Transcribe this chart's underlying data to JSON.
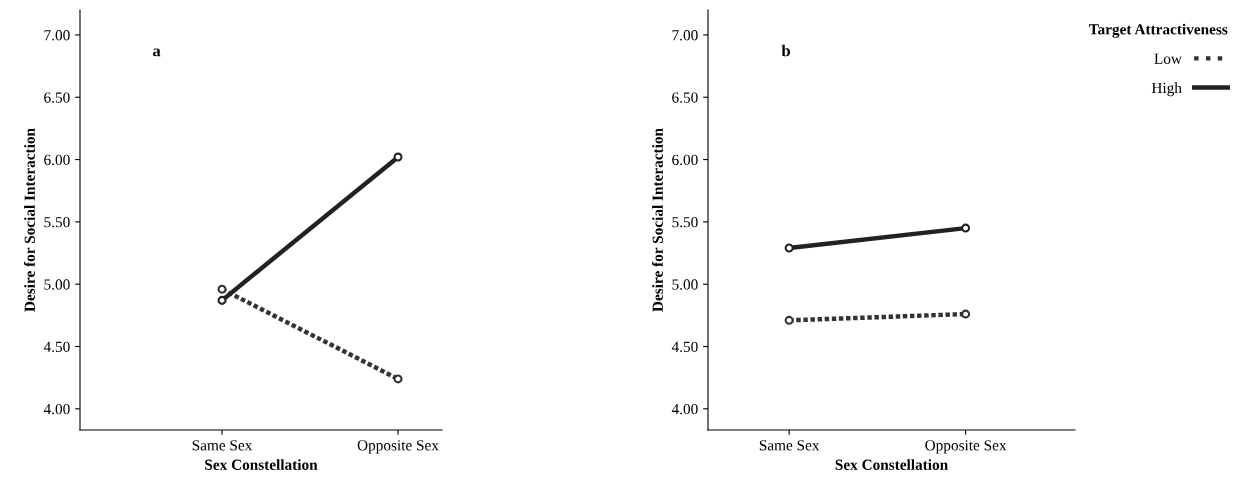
{
  "chart_data": [
    {
      "type": "line",
      "categories": [
        "Same Sex",
        "Opposite Sex"
      ],
      "xlabel": "Sex Constellation",
      "ylabel": "Desire for Social Interaction",
      "annotations": [
        "a"
      ],
      "marker": "circle",
      "grid": false,
      "legend": false,
      "ylim": [
        3.83,
        7.2
      ],
      "yticks": [
        {
          "value": 4,
          "label": "4.00"
        },
        {
          "value": 4.5,
          "label": "4.50"
        },
        {
          "value": 5,
          "label": "5.00"
        },
        {
          "value": 5.5,
          "label": "5.50"
        },
        {
          "value": 6,
          "label": "6.00"
        },
        {
          "value": 6.5,
          "label": "6.50"
        },
        {
          "value": 7,
          "label": "7.00"
        }
      ],
      "series": [
        {
          "color": "#333333",
          "line_style": "dotted",
          "values": [
            4.96,
            4.24
          ]
        },
        {
          "color": "#222222",
          "line_style": "solid",
          "values": [
            4.87,
            6.02
          ]
        }
      ]
    },
    {
      "type": "line",
      "categories": [
        "Same Sex",
        "Opposite Sex"
      ],
      "xlabel": "Sex Constellation",
      "ylabel": "Desire for Social Interaction",
      "annotations": [
        "b"
      ],
      "marker": "circle",
      "grid": false,
      "legend": "top right",
      "legend_title": "Target Attractiveness",
      "ylim": [
        3.83,
        7.2
      ],
      "yticks": [
        {
          "value": 4,
          "label": "4.00"
        },
        {
          "value": 4.5,
          "label": "4.50"
        },
        {
          "value": 5,
          "label": "5.00"
        },
        {
          "value": 5.5,
          "label": "5.50"
        },
        {
          "value": 6,
          "label": "6.00"
        },
        {
          "value": 6.5,
          "label": "6.50"
        },
        {
          "value": 7,
          "label": "7.00"
        }
      ],
      "series": [
        {
          "name": "Low",
          "color": "#333333",
          "line_style": "dotted",
          "values": [
            4.71,
            4.76
          ]
        },
        {
          "name": "High",
          "color": "#222222",
          "line_style": "solid",
          "values": [
            5.29,
            5.45
          ]
        }
      ]
    }
  ]
}
